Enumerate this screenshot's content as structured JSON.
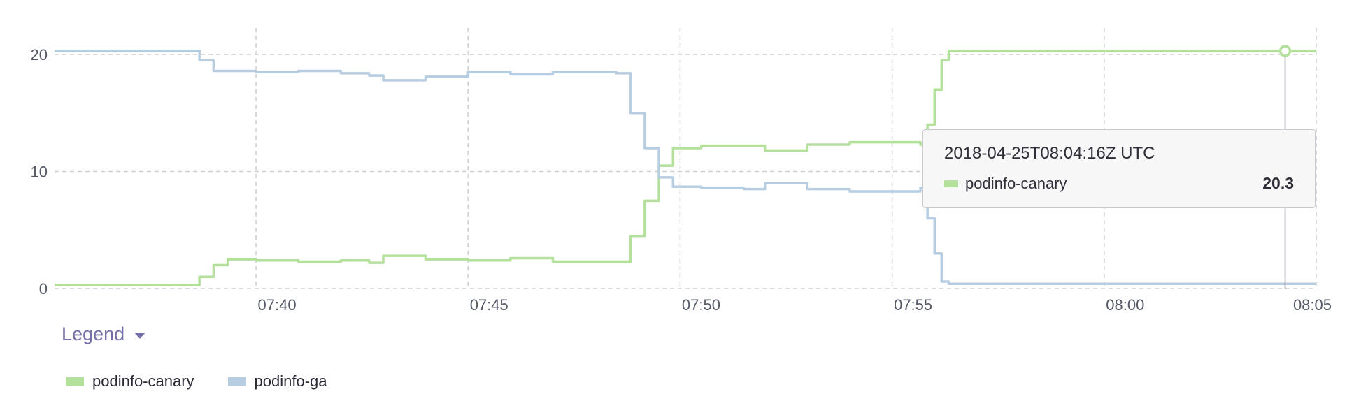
{
  "chart_data": {
    "type": "line",
    "y_ticks": [
      "0",
      "10",
      "20"
    ],
    "x_ticks": [
      "07:40",
      "07:45",
      "07:50",
      "07:55",
      "08:00",
      "08:05"
    ],
    "ylim": [
      0,
      20.3
    ],
    "grid": true,
    "legend_position": "bottom-left",
    "series": [
      {
        "name": "podinfo-canary",
        "color": "#b3e09a",
        "points": [
          [
            "07:35:15",
            0.3
          ],
          [
            "07:38:20",
            0.3
          ],
          [
            "07:38:40",
            1.0
          ],
          [
            "07:39:00",
            2.0
          ],
          [
            "07:39:20",
            2.5
          ],
          [
            "07:40:00",
            2.4
          ],
          [
            "07:41:00",
            2.3
          ],
          [
            "07:42:00",
            2.4
          ],
          [
            "07:42:40",
            2.2
          ],
          [
            "07:43:00",
            2.8
          ],
          [
            "07:44:00",
            2.5
          ],
          [
            "07:45:00",
            2.4
          ],
          [
            "07:46:00",
            2.6
          ],
          [
            "07:47:00",
            2.3
          ],
          [
            "07:48:30",
            2.3
          ],
          [
            "07:48:50",
            4.5
          ],
          [
            "07:49:10",
            7.5
          ],
          [
            "07:49:30",
            10.5
          ],
          [
            "07:49:50",
            12.0
          ],
          [
            "07:50:30",
            12.2
          ],
          [
            "07:51:30",
            12.2
          ],
          [
            "07:52:00",
            11.8
          ],
          [
            "07:53:00",
            12.3
          ],
          [
            "07:54:00",
            12.5
          ],
          [
            "07:55:40",
            12.3
          ],
          [
            "07:55:50",
            14.0
          ],
          [
            "07:56:00",
            17.0
          ],
          [
            "07:56:10",
            19.5
          ],
          [
            "07:56:20",
            20.3
          ],
          [
            "08:05:00",
            20.3
          ]
        ]
      },
      {
        "name": "podinfo-ga",
        "color": "#b6cde2",
        "points": [
          [
            "07:35:15",
            20.3
          ],
          [
            "07:38:20",
            20.3
          ],
          [
            "07:38:40",
            19.5
          ],
          [
            "07:39:00",
            18.6
          ],
          [
            "07:40:00",
            18.5
          ],
          [
            "07:41:00",
            18.6
          ],
          [
            "07:42:00",
            18.4
          ],
          [
            "07:42:40",
            18.2
          ],
          [
            "07:43:00",
            17.8
          ],
          [
            "07:44:00",
            18.1
          ],
          [
            "07:45:00",
            18.5
          ],
          [
            "07:46:00",
            18.3
          ],
          [
            "07:47:00",
            18.5
          ],
          [
            "07:48:30",
            18.4
          ],
          [
            "07:48:50",
            15.0
          ],
          [
            "07:49:10",
            12.0
          ],
          [
            "07:49:30",
            9.5
          ],
          [
            "07:49:50",
            8.7
          ],
          [
            "07:50:30",
            8.6
          ],
          [
            "07:51:30",
            8.5
          ],
          [
            "07:52:00",
            9.0
          ],
          [
            "07:53:00",
            8.5
          ],
          [
            "07:54:00",
            8.3
          ],
          [
            "07:55:40",
            8.6
          ],
          [
            "07:55:50",
            6.0
          ],
          [
            "07:56:00",
            3.0
          ],
          [
            "07:56:10",
            0.6
          ],
          [
            "07:56:20",
            0.4
          ],
          [
            "08:05:00",
            0.4
          ]
        ]
      }
    ],
    "hover_time": "08:04:16"
  },
  "legend": {
    "toggle_label": "Legend",
    "items": [
      {
        "label": "podinfo-canary",
        "color": "#b3e09a"
      },
      {
        "label": "podinfo-ga",
        "color": "#b6cde2"
      }
    ]
  },
  "tooltip": {
    "timestamp": "2018-04-25T08:04:16Z UTC",
    "series_name": "podinfo-canary",
    "value": "20.3"
  }
}
